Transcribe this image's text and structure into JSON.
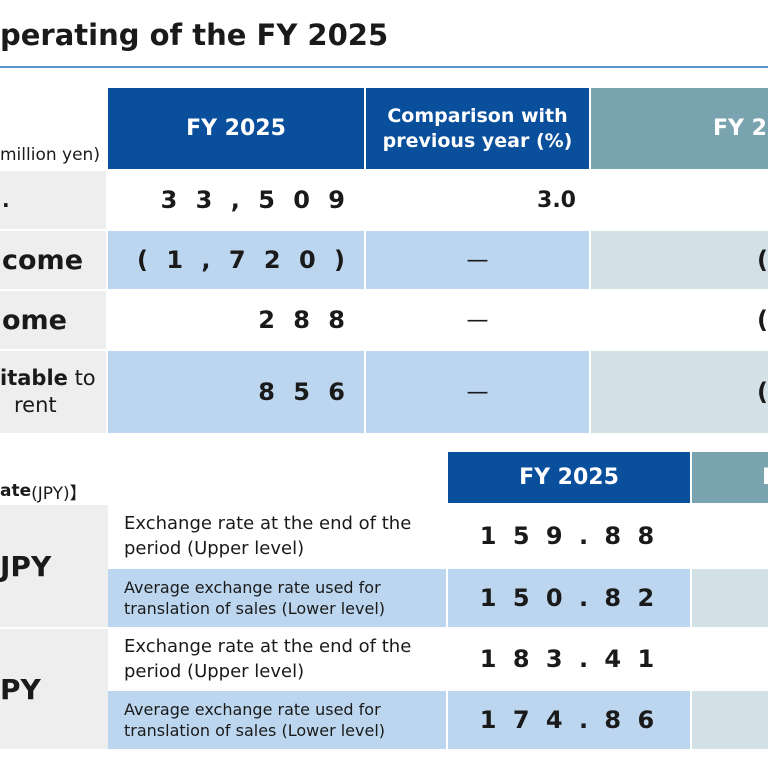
{
  "page": {
    "title": "perating of the FY 2025"
  },
  "top_table": {
    "unit_label": "million yen)",
    "headers": {
      "fy": "FY 2025",
      "comparison": "Comparison with previous year (%)",
      "fy_prev": "FY 2"
    },
    "rows": [
      {
        "label": ".",
        "value": "3 3 , 5 0 9",
        "comparison": "3.0",
        "prev": ""
      },
      {
        "label": "come",
        "value": "( 1 , 7 2 0 )",
        "comparison": "—",
        "prev": "("
      },
      {
        "label": "ome",
        "value": "2 8 8",
        "comparison": "—",
        "prev": "("
      },
      {
        "label_bold": "itable",
        "label_rest": " to",
        "label_line2": "rent",
        "value": "8 5 6",
        "comparison": "—",
        "prev": "("
      }
    ]
  },
  "fx_table": {
    "heading_bold": "ate",
    "heading_rest": "(JPY)】",
    "headers": {
      "fy": "FY 2025",
      "fy_prev": "F"
    },
    "groups": [
      {
        "currency": "JPY",
        "rows": [
          {
            "description": "Exchange rate at the end of the period (Upper level)",
            "value": "1 5 9 . 8 8"
          },
          {
            "description": "Average exchange rate used for translation of sales (Lower level)",
            "value": "1 5 0 . 8 2"
          }
        ]
      },
      {
        "currency": "PY",
        "rows": [
          {
            "description": "Exchange rate at the end of the period (Upper level)",
            "value": "1 8 3 . 4 1"
          },
          {
            "description": "Average exchange rate used for translation of sales (Lower level)",
            "value": "1 7 4 . 8 6"
          }
        ]
      }
    ]
  }
}
